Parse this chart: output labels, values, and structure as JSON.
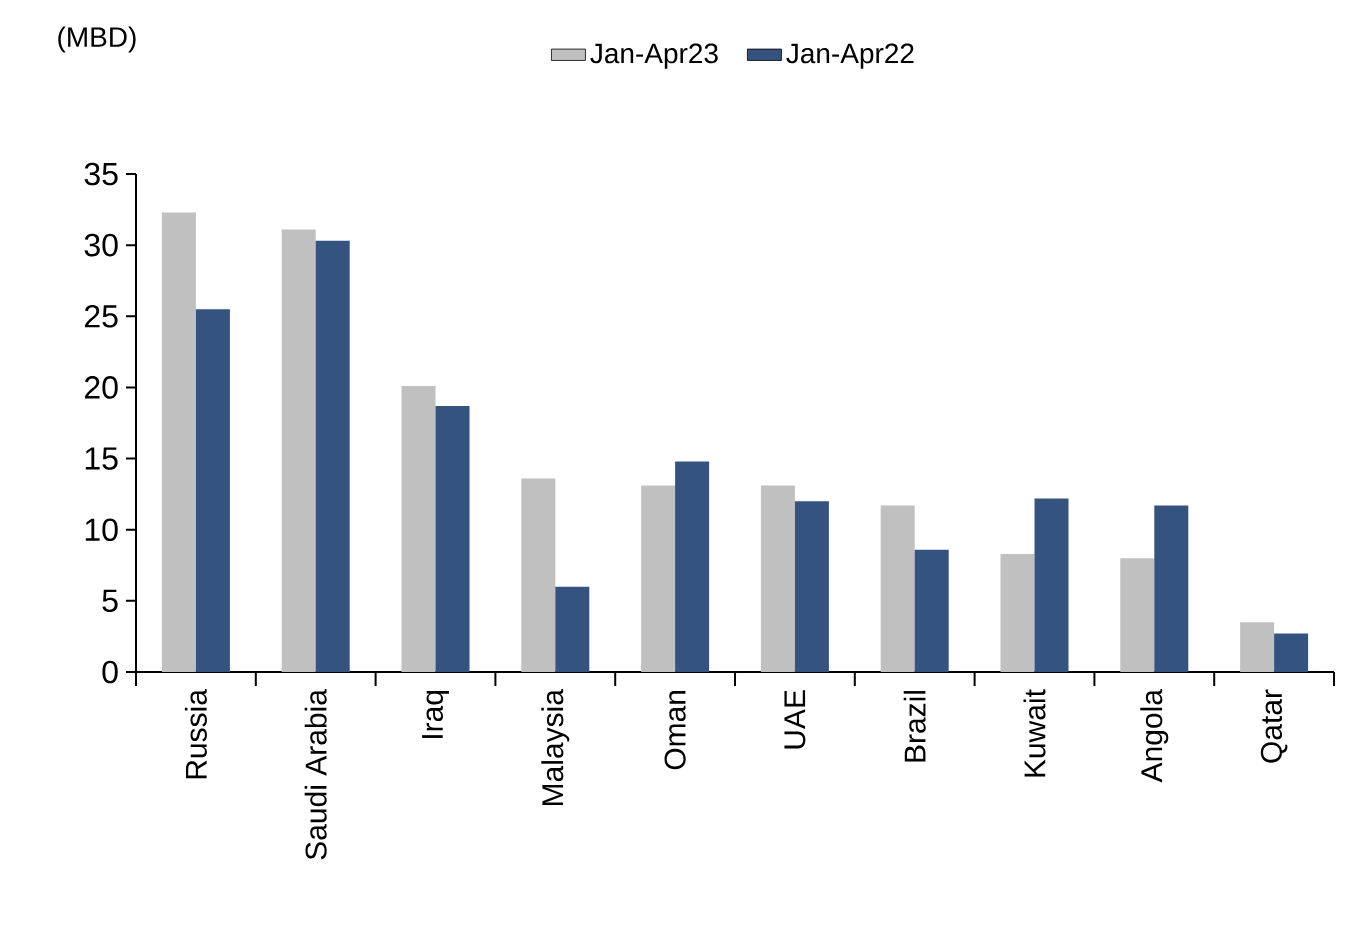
{
  "chart_data": {
    "type": "bar",
    "ylabel": "(MBD)",
    "categories": [
      "Russia",
      "Saudi Arabia",
      "Iraq",
      "Malaysia",
      "Oman",
      "UAE",
      "Brazil",
      "Kuwait",
      "Angola",
      "Qatar"
    ],
    "series": [
      {
        "name": "Jan-Apr23",
        "color": "#c0c0c0",
        "values": [
          32.3,
          31.1,
          20.1,
          13.6,
          13.1,
          13.1,
          11.7,
          8.3,
          8.0,
          3.5
        ]
      },
      {
        "name": "Jan-Apr22",
        "color": "#34547f",
        "values": [
          25.5,
          30.3,
          18.7,
          6.0,
          14.8,
          12.0,
          8.6,
          12.2,
          11.7,
          2.7
        ]
      }
    ],
    "ylim": [
      0,
      35
    ],
    "yticks": [
      0,
      5,
      10,
      15,
      20,
      25,
      30,
      35
    ],
    "legend": "top",
    "grid": false
  }
}
